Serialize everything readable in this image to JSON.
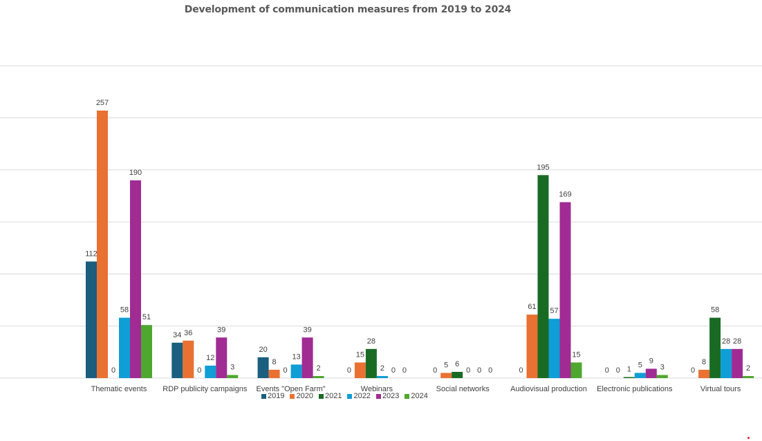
{
  "chart_data": {
    "type": "bar",
    "title": "Development of communication measures from 2019 to 2024",
    "xlabel": "",
    "ylabel": "",
    "ylim": [
      0,
      300
    ],
    "grid": true,
    "grid_step": 50,
    "y_tick_labels_shown": false,
    "legend_position": "bottom",
    "categories": [
      "Thematic events",
      "RDP publicity campaigns",
      "Events \"Open Farm\"",
      "Webinars",
      "Social networks",
      "Audiovisual production",
      "Electronic publications",
      "Virtual tours"
    ],
    "series": [
      {
        "name": "2019",
        "color": "#1b5e7e",
        "values": [
          112,
          34,
          20,
          0,
          0,
          0,
          0,
          0
        ]
      },
      {
        "name": "2020",
        "color": "#e97132",
        "values": [
          257,
          36,
          8,
          15,
          5,
          61,
          0,
          8
        ]
      },
      {
        "name": "2021",
        "color": "#196b24",
        "values": [
          0,
          0,
          0,
          28,
          6,
          195,
          1,
          58
        ]
      },
      {
        "name": "2022",
        "color": "#0f9ed5",
        "values": [
          58,
          12,
          13,
          2,
          0,
          57,
          5,
          28
        ]
      },
      {
        "name": "2023",
        "color": "#a02b93",
        "values": [
          190,
          39,
          39,
          0,
          0,
          169,
          9,
          28
        ]
      },
      {
        "name": "2024",
        "color": "#4ea72e",
        "values": [
          51,
          3,
          2,
          0,
          0,
          15,
          3,
          2
        ]
      }
    ]
  }
}
